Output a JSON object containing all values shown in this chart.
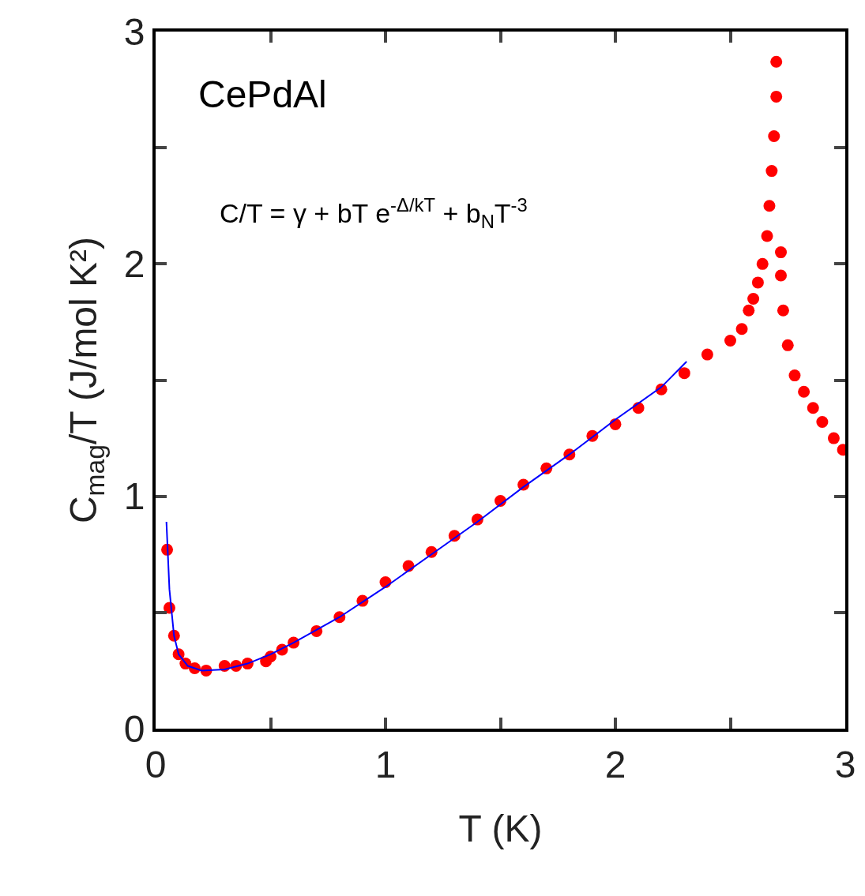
{
  "chart_data": {
    "type": "scatter",
    "xlabel": "T (K)",
    "ylabel": "C$_{mag}$/T (J/mol K²)",
    "annotations": [
      "CePdAl",
      "C/T = γ + bT e$^{-Δ/kT}$ + b$_{N}$T$^{-3}$"
    ],
    "xlim": [
      0,
      3
    ],
    "ylim": [
      0,
      3
    ],
    "xticks": [
      0,
      {
        "value": 0.5,
        "label": null
      },
      1,
      {
        "value": 1.5,
        "label": null
      },
      2,
      {
        "value": 2.5,
        "label": null
      },
      3
    ],
    "yticks": [
      0,
      {
        "value": 0.5,
        "label": null
      },
      1,
      {
        "value": 1.5,
        "label": null
      },
      2,
      {
        "value": 2.5,
        "label": null
      },
      3
    ],
    "marker": "circle",
    "series": [
      {
        "color": "#ff0000",
        "x": [
          0.05,
          0.06,
          0.08,
          0.1,
          0.13,
          0.17,
          0.22,
          0.3,
          0.35,
          0.4,
          0.48,
          0.5,
          0.55,
          0.6,
          0.7,
          0.8,
          0.9,
          1.0,
          1.1,
          1.2,
          1.3,
          1.4,
          1.5,
          1.6,
          1.7,
          1.8,
          1.9,
          2.0,
          2.1,
          2.2,
          2.3,
          2.4,
          2.5,
          2.55,
          2.58,
          2.6,
          2.62,
          2.64,
          2.66,
          2.67,
          2.68,
          2.69,
          2.7,
          2.7,
          2.72,
          2.72,
          2.73,
          2.75,
          2.78,
          2.82,
          2.86,
          2.9,
          2.95,
          2.99
        ],
        "values": [
          0.77,
          0.52,
          0.4,
          0.32,
          0.28,
          0.26,
          0.25,
          0.27,
          0.27,
          0.28,
          0.29,
          0.31,
          0.34,
          0.37,
          0.42,
          0.48,
          0.55,
          0.63,
          0.7,
          0.76,
          0.83,
          0.9,
          0.98,
          1.05,
          1.12,
          1.18,
          1.26,
          1.31,
          1.38,
          1.46,
          1.53,
          1.61,
          1.67,
          1.72,
          1.8,
          1.85,
          1.92,
          2.0,
          2.12,
          2.25,
          2.4,
          2.55,
          2.72,
          2.87,
          2.05,
          1.95,
          1.8,
          1.65,
          1.52,
          1.45,
          1.38,
          1.32,
          1.25,
          1.2
        ]
      },
      {
        "type": "line",
        "color": "#0000ff",
        "marker": "none",
        "x": [
          0.047,
          0.06,
          0.08,
          0.1,
          0.14,
          0.2,
          0.3,
          0.4,
          0.5,
          0.6,
          0.8,
          1.0,
          1.2,
          1.4,
          1.6,
          1.8,
          2.0,
          2.2,
          2.31
        ],
        "values": [
          0.89,
          0.6,
          0.4,
          0.32,
          0.27,
          0.25,
          0.255,
          0.28,
          0.32,
          0.37,
          0.48,
          0.61,
          0.75,
          0.89,
          1.04,
          1.18,
          1.33,
          1.47,
          1.58
        ]
      }
    ]
  }
}
